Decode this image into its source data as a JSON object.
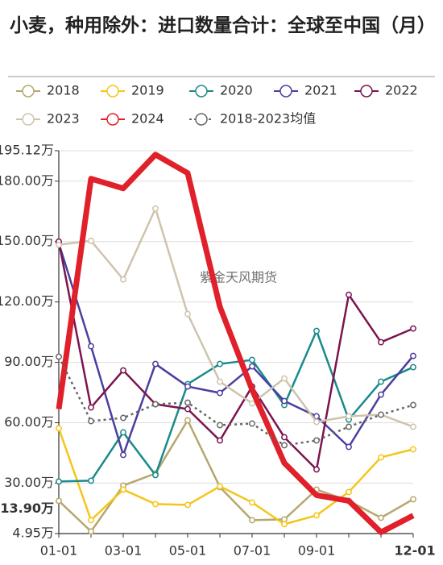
{
  "chart_data": {
    "type": "line",
    "title": "小麦，种用除外：进口数量合计：全球至中国（月）",
    "watermark": "紫金天风期货",
    "categories": [
      "01-01",
      null,
      "03-01",
      null,
      "05-01",
      null,
      "07-01",
      null,
      "09-01",
      null,
      null,
      "12-01"
    ],
    "highlight_category": 11,
    "highlight_color": "#e0202a",
    "ylim": [
      4.95,
      195.12
    ],
    "yticks": [
      {
        "value": 4.95,
        "label": "4.95万"
      },
      {
        "value": 30,
        "label": "30.00万"
      },
      {
        "value": 60,
        "label": "60.00万"
      },
      {
        "value": 90,
        "label": "90.00万"
      },
      {
        "value": 120,
        "label": "120.00万"
      },
      {
        "value": 150,
        "label": "150.00万"
      },
      {
        "value": 180,
        "label": "180.00万"
      },
      {
        "value": 195.12,
        "label": "195.12万"
      }
    ],
    "grid": true,
    "series": [
      {
        "name": "2018",
        "color": "#b5a76e",
        "values": [
          21.2,
          6,
          28.8,
          34.8,
          61.2,
          28,
          11.6,
          12,
          26.8,
          21.2,
          12.8,
          22
        ]
      },
      {
        "name": "2019",
        "color": "#f5c518",
        "values": [
          57.2,
          11.6,
          26.8,
          19.6,
          19.2,
          28.4,
          20.4,
          9.6,
          14,
          25.6,
          42.8,
          46.8
        ]
      },
      {
        "name": "2020",
        "color": "#1a8a8a",
        "values": [
          30.8,
          31.2,
          55.2,
          34,
          79.2,
          89.2,
          91.2,
          68.8,
          105.6,
          61.6,
          80.4,
          87.6
        ]
      },
      {
        "name": "2021",
        "color": "#4b3f9e",
        "values": [
          149.2,
          98,
          44,
          89.2,
          78,
          74.8,
          88,
          70.8,
          63.2,
          48,
          74,
          93.2
        ]
      },
      {
        "name": "2022",
        "color": "#7b1450",
        "values": [
          150,
          67.6,
          86,
          69.2,
          66.8,
          51.2,
          78,
          52.8,
          36.8,
          123.6,
          100,
          106.8
        ]
      },
      {
        "name": "2023",
        "color": "#cfc3ad",
        "values": [
          148.4,
          150.4,
          131.2,
          166.4,
          114,
          80.4,
          69.6,
          82,
          60.4,
          63.2,
          64,
          58
        ]
      },
      {
        "name": "2024",
        "color": "#e0202a",
        "width": 7,
        "values": [
          66.8,
          181.2,
          176.4,
          193.2,
          184,
          117.6,
          76.4,
          40,
          24,
          21.2,
          5.6,
          13.9
        ],
        "value_labels": [
          null,
          null,
          null,
          null,
          null,
          null,
          null,
          null,
          null,
          null,
          null,
          "13.90万"
        ]
      },
      {
        "name": "2018-2023均值",
        "color": "#666666",
        "dashed": true,
        "values": [
          92.8,
          60.8,
          62.4,
          69.2,
          70,
          58.8,
          59.6,
          48.8,
          51.2,
          58,
          64,
          68.8
        ]
      }
    ]
  }
}
